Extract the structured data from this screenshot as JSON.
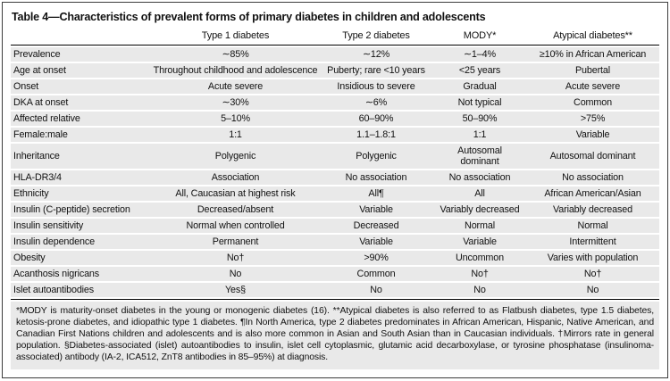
{
  "title": "Table 4—Characteristics of prevalent forms of primary diabetes in children and adolescents",
  "columns": [
    "",
    "Type 1 diabetes",
    "Type 2 diabetes",
    "MODY*",
    "Atypical diabetes**"
  ],
  "rows": [
    {
      "label": "Prevalence",
      "t1d": "∼85%",
      "t2d": "∼12%",
      "mody": "∼1–4%",
      "atypical": "≥10% in African American"
    },
    {
      "label": "Age at onset",
      "t1d": "Throughout childhood and adolescence",
      "t2d": "Puberty; rare <10 years",
      "mody": "<25 years",
      "atypical": "Pubertal"
    },
    {
      "label": "Onset",
      "t1d": "Acute severe",
      "t2d": "Insidious to severe",
      "mody": "Gradual",
      "atypical": "Acute severe"
    },
    {
      "label": "DKA at onset",
      "t1d": "∼30%",
      "t2d": "∼6%",
      "mody": "Not typical",
      "atypical": "Common"
    },
    {
      "label": "Affected relative",
      "t1d": "5–10%",
      "t2d": "60–90%",
      "mody": "50–90%",
      "atypical": ">75%"
    },
    {
      "label": "Female:male",
      "t1d": "1:1",
      "t2d": "1.1–1.8:1",
      "mody": "1:1",
      "atypical": "Variable"
    },
    {
      "label": "Inheritance",
      "t1d": "Polygenic",
      "t2d": "Polygenic",
      "mody": "Autosomal dominant",
      "atypical": "Autosomal dominant"
    },
    {
      "label": "HLA-DR3/4",
      "t1d": "Association",
      "t2d": "No association",
      "mody": "No association",
      "atypical": "No association"
    },
    {
      "label": "Ethnicity",
      "t1d": "All, Caucasian at highest risk",
      "t2d": "All¶",
      "mody": "All",
      "atypical": "African American/Asian"
    },
    {
      "label": "Insulin (C-peptide) secretion",
      "t1d": "Decreased/absent",
      "t2d": "Variable",
      "mody": "Variably decreased",
      "atypical": "Variably decreased"
    },
    {
      "label": "Insulin sensitivity",
      "t1d": "Normal when controlled",
      "t2d": "Decreased",
      "mody": "Normal",
      "atypical": "Normal"
    },
    {
      "label": "Insulin dependence",
      "t1d": "Permanent",
      "t2d": "Variable",
      "mody": "Variable",
      "atypical": "Intermittent"
    },
    {
      "label": "Obesity",
      "t1d": "No†",
      "t2d": ">90%",
      "mody": "Uncommon",
      "atypical": "Varies with population"
    },
    {
      "label": "Acanthosis nigricans",
      "t1d": "No",
      "t2d": "Common",
      "mody": "No†",
      "atypical": "No†"
    },
    {
      "label": "Islet autoantibodies",
      "t1d": "Yes§",
      "t2d": "No",
      "mody": "No",
      "atypical": "No"
    }
  ],
  "footnote": "*MODY is maturity-onset diabetes in the young or monogenic diabetes (16). **Atypical diabetes is also referred to as Flatbush diabetes, type 1.5 diabetes, ketosis-prone diabetes, and idiopathic type 1 diabetes. ¶In North America, type 2 diabetes predominates in African American, Hispanic, Native American, and Canadian First Nations children and adolescents and is also more common in Asian and South Asian than in Caucasian individuals. †Mirrors rate in general population. §Diabetes-associated (islet) autoantibodies to insulin, islet cell cytoplasmic, glutamic acid decarboxylase, or tyrosine phosphatase (insulinoma-associated) antibody (IA-2, ICA512, ZnT8 antibodies in 85–95%) at diagnosis.",
  "colors": {
    "row_bg": "#e9e9e9",
    "text": "#111111",
    "rule": "#000000",
    "frame_border": "#3c3c3c"
  }
}
